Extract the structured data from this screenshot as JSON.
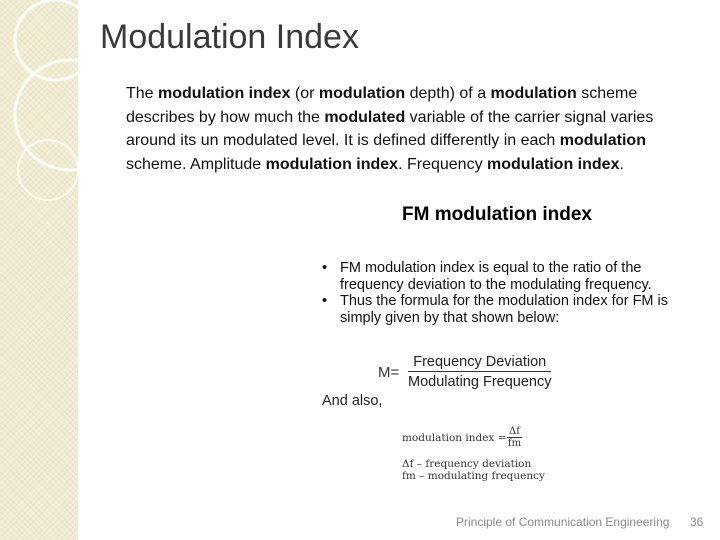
{
  "slide": {
    "title": "Modulation Index",
    "body_segments": [
      {
        "text": "The ",
        "bold": false
      },
      {
        "text": "modulation index",
        "bold": true
      },
      {
        "text": " (or ",
        "bold": false
      },
      {
        "text": "modulation",
        "bold": true
      },
      {
        "text": " depth) of a ",
        "bold": false
      },
      {
        "text": "modulation",
        "bold": true
      },
      {
        "text": " scheme describes by how much the ",
        "bold": false
      },
      {
        "text": "modulated",
        "bold": true
      },
      {
        "text": " variable of the carrier signal varies around its un modulated level. It is defined differently in each ",
        "bold": false
      },
      {
        "text": "modulation",
        "bold": true
      },
      {
        "text": " scheme. Amplitude ",
        "bold": false
      },
      {
        "text": "modulation index",
        "bold": true
      },
      {
        "text": ". Frequency ",
        "bold": false
      },
      {
        "text": "modulation index",
        "bold": true
      },
      {
        "text": ".",
        "bold": false
      }
    ],
    "footer": "Principle of Communication Engineering",
    "page_number": "36"
  },
  "fm_image": {
    "heading": "FM modulation index",
    "bullet_marker": "•",
    "bullets": [
      "FM modulation index is equal to the ratio of the frequency deviation to the modulating frequency.",
      "Thus the formula for the modulation index for FM is simply given by that shown below:"
    ],
    "formula1": {
      "lhs": "M=",
      "numerator": "Frequency Deviation",
      "denominator": "Modulating Frequency"
    },
    "and_also": "And also,",
    "formula2": {
      "lhs": "modulation index =",
      "numerator": "Δf",
      "denominator": "fm"
    },
    "definitions": [
      "Δf – frequency deviation",
      "fm – modulating frequency"
    ]
  },
  "colors": {
    "sidebar": "#f4f0d8",
    "title": "#3a3a3a",
    "footer": "#8a8a8a"
  }
}
